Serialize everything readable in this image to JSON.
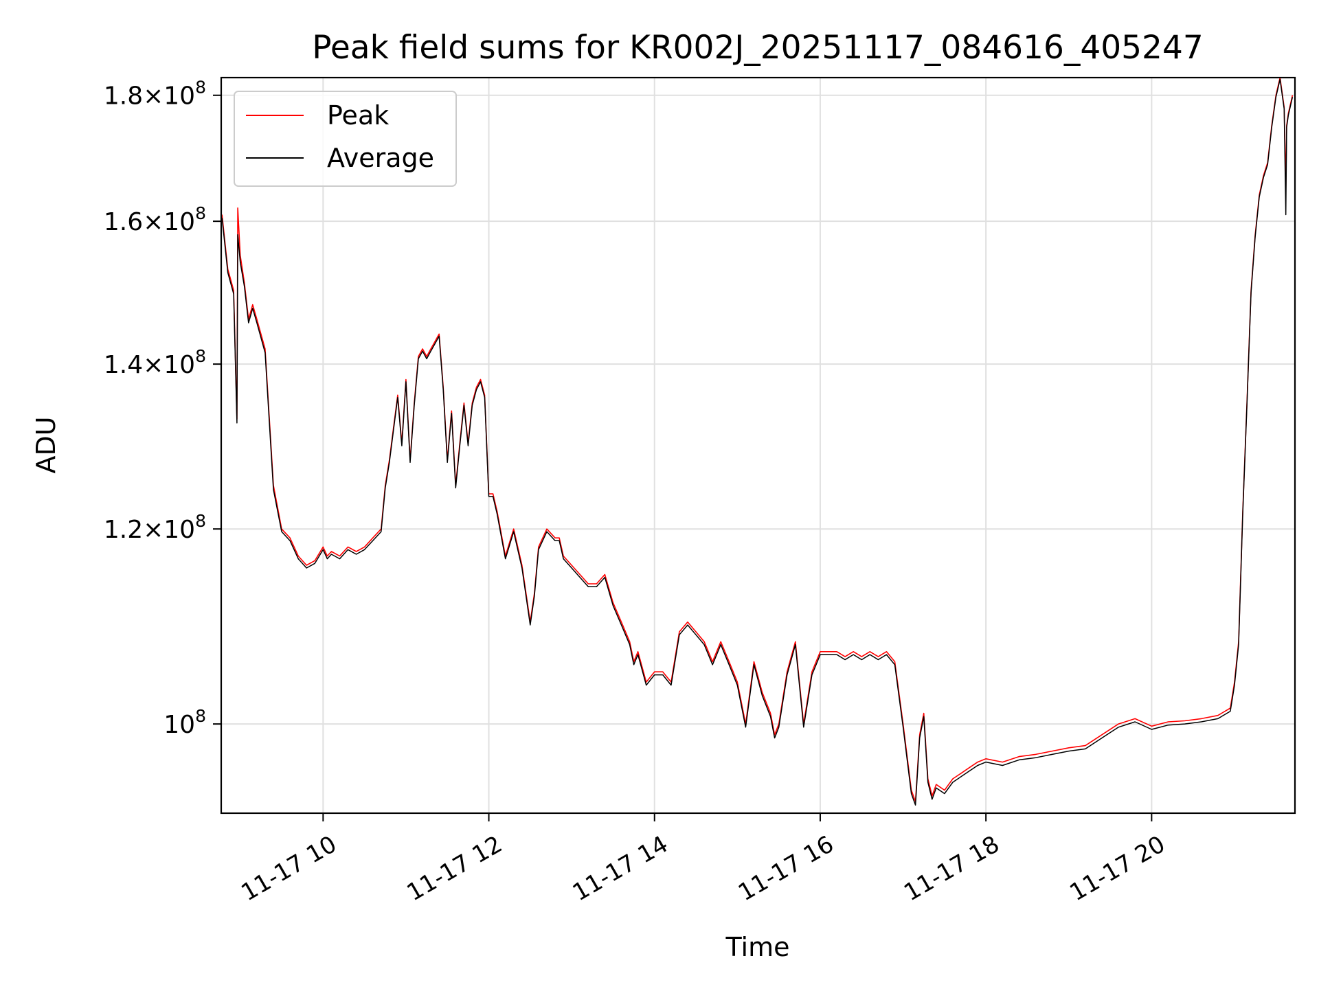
{
  "chart_data": {
    "type": "line",
    "title": "Peak field sums for KR002J_20251117_084616_405247",
    "xlabel": "Time",
    "ylabel": "ADU",
    "yscale": "log",
    "ylim": [
      92000000,
      183000000
    ],
    "xlim_hours": [
      8.77,
      21.73
    ],
    "grid": true,
    "legend_position": "upper-left",
    "x_ticks": [
      {
        "value": 10,
        "label": "11-17 10"
      },
      {
        "value": 12,
        "label": "11-17 12"
      },
      {
        "value": 14,
        "label": "11-17 14"
      },
      {
        "value": 16,
        "label": "11-17 16"
      },
      {
        "value": 18,
        "label": "11-17 18"
      },
      {
        "value": 20,
        "label": "11-17 20"
      }
    ],
    "y_ticks": [
      {
        "value": 100000000,
        "mantissa": "",
        "exponent": "8"
      },
      {
        "value": 120000000,
        "mantissa": "1.2",
        "exponent": "8"
      },
      {
        "value": 140000000,
        "mantissa": "1.4",
        "exponent": "8"
      },
      {
        "value": 160000000,
        "mantissa": "1.6",
        "exponent": "8"
      },
      {
        "value": 180000000,
        "mantissa": "1.8",
        "exponent": "8"
      }
    ],
    "series": [
      {
        "name": "Peak",
        "color": "#ff0000",
        "x": [
          8.78,
          8.85,
          8.92,
          8.96,
          8.97,
          9.0,
          9.05,
          9.1,
          9.15,
          9.2,
          9.3,
          9.4,
          9.5,
          9.6,
          9.7,
          9.8,
          9.9,
          10.0,
          10.05,
          10.1,
          10.2,
          10.3,
          10.4,
          10.5,
          10.6,
          10.7,
          10.75,
          10.8,
          10.85,
          10.9,
          10.95,
          11.0,
          11.05,
          11.1,
          11.15,
          11.2,
          11.25,
          11.3,
          11.35,
          11.4,
          11.45,
          11.5,
          11.55,
          11.6,
          11.65,
          11.7,
          11.75,
          11.8,
          11.85,
          11.9,
          11.95,
          12.0,
          12.05,
          12.1,
          12.2,
          12.3,
          12.4,
          12.5,
          12.55,
          12.6,
          12.7,
          12.8,
          12.85,
          12.9,
          13.0,
          13.1,
          13.2,
          13.3,
          13.4,
          13.5,
          13.6,
          13.7,
          13.75,
          13.8,
          13.9,
          14.0,
          14.1,
          14.2,
          14.3,
          14.4,
          14.5,
          14.6,
          14.7,
          14.8,
          14.9,
          15.0,
          15.1,
          15.2,
          15.3,
          15.4,
          15.45,
          15.5,
          15.6,
          15.7,
          15.8,
          15.9,
          16.0,
          16.1,
          16.2,
          16.3,
          16.4,
          16.5,
          16.6,
          16.7,
          16.8,
          16.9,
          17.0,
          17.1,
          17.15,
          17.2,
          17.25,
          17.3,
          17.35,
          17.4,
          17.5,
          17.6,
          17.7,
          17.8,
          17.9,
          18.0,
          18.2,
          18.4,
          18.6,
          18.8,
          19.0,
          19.2,
          19.4,
          19.6,
          19.8,
          20.0,
          20.2,
          20.4,
          20.6,
          20.8,
          20.95,
          21.0,
          21.05,
          21.1,
          21.15,
          21.2,
          21.25,
          21.3,
          21.35,
          21.4,
          21.45,
          21.5,
          21.55,
          21.6,
          21.62,
          21.63,
          21.65,
          21.7
        ],
        "values": [
          161000000,
          153000000,
          150000000,
          133000000,
          162000000,
          155000000,
          151000000,
          146000000,
          148000000,
          146000000,
          142000000,
          125000000,
          120000000,
          119000000,
          117000000,
          116000000,
          116500000,
          118000000,
          117000000,
          117500000,
          117000000,
          118000000,
          117500000,
          118000000,
          119000000,
          120000000,
          125000000,
          128000000,
          132000000,
          136000000,
          130000000,
          138000000,
          128000000,
          135000000,
          141000000,
          142000000,
          141000000,
          142000000,
          143000000,
          144000000,
          137000000,
          128000000,
          134000000,
          125000000,
          130000000,
          135000000,
          130000000,
          135000000,
          137000000,
          138000000,
          136000000,
          124000000,
          124000000,
          122000000,
          117000000,
          120000000,
          116000000,
          110000000,
          113000000,
          118000000,
          120000000,
          119000000,
          119000000,
          117000000,
          116000000,
          115000000,
          114000000,
          114000000,
          115000000,
          112000000,
          110000000,
          108000000,
          106000000,
          107000000,
          104000000,
          105000000,
          105000000,
          104000000,
          109000000,
          110000000,
          109000000,
          108000000,
          106000000,
          108000000,
          106000000,
          104000000,
          100000000,
          106000000,
          103000000,
          101000000,
          99000000,
          100000000,
          105000000,
          108000000,
          100000000,
          105000000,
          107000000,
          107000000,
          107000000,
          106500000,
          107000000,
          106500000,
          107000000,
          106500000,
          107000000,
          106000000,
          100000000,
          94000000,
          93000000,
          99000000,
          101000000,
          95000000,
          93500000,
          94500000,
          94000000,
          95000000,
          95500000,
          96000000,
          96500000,
          96800000,
          96500000,
          97000000,
          97200000,
          97500000,
          97800000,
          98000000,
          99000000,
          100000000,
          100500000,
          99800000,
          100200000,
          100300000,
          100500000,
          100800000,
          101500000,
          104000000,
          108000000,
          122000000,
          135000000,
          150000000,
          158000000,
          164000000,
          167000000,
          169000000,
          175000000,
          180000000,
          183000000,
          178000000,
          165000000,
          175000000,
          177000000,
          180000000
        ]
      },
      {
        "name": "Average",
        "color": "#000000",
        "x": [
          8.78,
          8.85,
          8.92,
          8.96,
          8.97,
          9.0,
          9.05,
          9.1,
          9.15,
          9.2,
          9.3,
          9.4,
          9.5,
          9.6,
          9.7,
          9.8,
          9.9,
          10.0,
          10.05,
          10.1,
          10.2,
          10.3,
          10.4,
          10.5,
          10.6,
          10.7,
          10.75,
          10.8,
          10.85,
          10.9,
          10.95,
          11.0,
          11.05,
          11.1,
          11.15,
          11.2,
          11.25,
          11.3,
          11.35,
          11.4,
          11.45,
          11.5,
          11.55,
          11.6,
          11.65,
          11.7,
          11.75,
          11.8,
          11.85,
          11.9,
          11.95,
          12.0,
          12.05,
          12.1,
          12.2,
          12.3,
          12.4,
          12.5,
          12.55,
          12.6,
          12.7,
          12.8,
          12.85,
          12.9,
          13.0,
          13.1,
          13.2,
          13.3,
          13.4,
          13.5,
          13.6,
          13.7,
          13.75,
          13.8,
          13.9,
          14.0,
          14.1,
          14.2,
          14.3,
          14.4,
          14.5,
          14.6,
          14.7,
          14.8,
          14.9,
          15.0,
          15.1,
          15.2,
          15.3,
          15.4,
          15.45,
          15.5,
          15.6,
          15.7,
          15.8,
          15.9,
          16.0,
          16.1,
          16.2,
          16.3,
          16.4,
          16.5,
          16.6,
          16.7,
          16.8,
          16.9,
          17.0,
          17.1,
          17.15,
          17.2,
          17.25,
          17.3,
          17.35,
          17.4,
          17.5,
          17.6,
          17.7,
          17.8,
          17.9,
          18.0,
          18.2,
          18.4,
          18.6,
          18.8,
          19.0,
          19.2,
          19.4,
          19.6,
          19.8,
          20.0,
          20.2,
          20.4,
          20.6,
          20.8,
          20.95,
          21.0,
          21.05,
          21.1,
          21.15,
          21.2,
          21.25,
          21.3,
          21.35,
          21.4,
          21.45,
          21.5,
          21.55,
          21.6,
          21.62,
          21.63,
          21.65,
          21.7
        ],
        "values": [
          160500000,
          152500000,
          149500000,
          132500000,
          158000000,
          154000000,
          150500000,
          145500000,
          147500000,
          145500000,
          141500000,
          124500000,
          119700000,
          118700000,
          116700000,
          115700000,
          116200000,
          117700000,
          116700000,
          117200000,
          116700000,
          117700000,
          117200000,
          117700000,
          118700000,
          119700000,
          124700000,
          127700000,
          131700000,
          135700000,
          129700000,
          137700000,
          127700000,
          134700000,
          140700000,
          141700000,
          140700000,
          141700000,
          142700000,
          143700000,
          136700000,
          127700000,
          133700000,
          124700000,
          129700000,
          134700000,
          129700000,
          134700000,
          136700000,
          137700000,
          135700000,
          123700000,
          123700000,
          121700000,
          116700000,
          119700000,
          115700000,
          109700000,
          112700000,
          117700000,
          119700000,
          118700000,
          118700000,
          116700000,
          115700000,
          114700000,
          113700000,
          113700000,
          114700000,
          111700000,
          109700000,
          107700000,
          105700000,
          106700000,
          103700000,
          104700000,
          104700000,
          103700000,
          108700000,
          109700000,
          108700000,
          107700000,
          105700000,
          107700000,
          105700000,
          103700000,
          99700000,
          105700000,
          102700000,
          100700000,
          98700000,
          99700000,
          104700000,
          107700000,
          99700000,
          104700000,
          106700000,
          106700000,
          106700000,
          106200000,
          106700000,
          106200000,
          106700000,
          106200000,
          106700000,
          105700000,
          99700000,
          93700000,
          92700000,
          98700000,
          100700000,
          94700000,
          93200000,
          94200000,
          93700000,
          94700000,
          95200000,
          95700000,
          96200000,
          96500000,
          96200000,
          96700000,
          96900000,
          97200000,
          97500000,
          97700000,
          98700000,
          99700000,
          100200000,
          99500000,
          99900000,
          100000000,
          100200000,
          100500000,
          101200000,
          103700000,
          107700000,
          121700000,
          134700000,
          149700000,
          157700000,
          163700000,
          166700000,
          168700000,
          174700000,
          179700000,
          182700000,
          177700000,
          161000000,
          174700000,
          176700000,
          179700000
        ]
      }
    ]
  }
}
